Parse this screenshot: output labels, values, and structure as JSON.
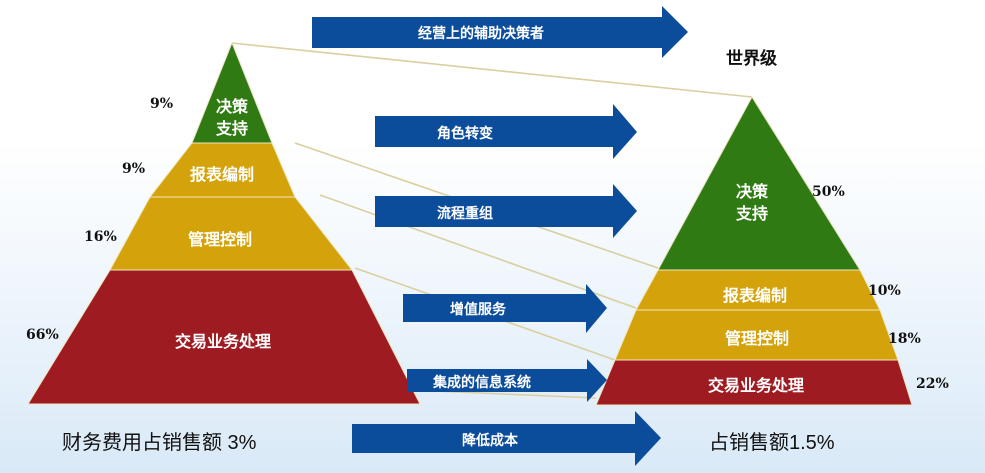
{
  "colors": {
    "green": "#2f7a12",
    "gold": "#d4a20a",
    "red": "#9e1b22",
    "arrow": "#0c4d9b"
  },
  "arrows": {
    "decision_helper": "经营上的辅助决策者",
    "role_change": "角色转变",
    "process_reengineering": "流程重组",
    "value_added": "增值服务",
    "integrated_info": "集成的信息系统",
    "cost_reduction": "降低成本"
  },
  "world_class": "世界级",
  "left_pyramid": {
    "levels": [
      {
        "label_line1": "决策",
        "label_line2": "支持",
        "percent": "9%"
      },
      {
        "label": "报表编制",
        "percent": "9%"
      },
      {
        "label": "管理控制",
        "percent": "16%"
      },
      {
        "label": "交易业务处理",
        "percent": "66%"
      }
    ],
    "caption": "财务费用占销售额 3%"
  },
  "right_pyramid": {
    "levels": [
      {
        "label_line1": "决策",
        "label_line2": "支持",
        "percent": "50%"
      },
      {
        "label": "报表编制",
        "percent": "10%"
      },
      {
        "label": "管理控制",
        "percent": "18%"
      },
      {
        "label": "交易业务处理",
        "percent": "22%"
      }
    ],
    "caption": "占销售额1.5%"
  }
}
